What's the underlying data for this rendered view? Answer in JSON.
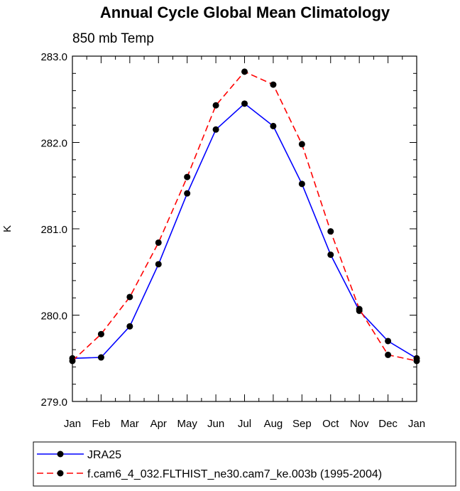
{
  "chart_data": {
    "type": "line",
    "title": "Annual Cycle Global Mean Climatology",
    "subtitle": "850 mb Temp",
    "xlabel": "",
    "ylabel": "K",
    "categories": [
      "Jan",
      "Feb",
      "Mar",
      "Apr",
      "May",
      "Jun",
      "Jul",
      "Aug",
      "Sep",
      "Oct",
      "Nov",
      "Dec",
      "Jan"
    ],
    "ylim": [
      279.0,
      283.0
    ],
    "yticks": [
      "279.0",
      "280.0",
      "281.0",
      "282.0",
      "283.0"
    ],
    "grid": false,
    "legend_position": "bottom",
    "series": [
      {
        "name": "JRA25",
        "color": "#0000ff",
        "style": "solid",
        "values": [
          279.5,
          279.51,
          279.87,
          280.59,
          281.41,
          282.15,
          282.45,
          282.19,
          281.52,
          280.7,
          280.05,
          279.7,
          279.5
        ]
      },
      {
        "name": "f.cam6_4_032.FLTHIST_ne30.cam7_ke.003b (1995-2004)",
        "color": "#ff0000",
        "style": "dashed",
        "values": [
          279.47,
          279.78,
          280.21,
          280.84,
          281.6,
          282.43,
          282.82,
          282.67,
          281.98,
          280.97,
          280.07,
          279.54,
          279.47
        ]
      }
    ]
  }
}
